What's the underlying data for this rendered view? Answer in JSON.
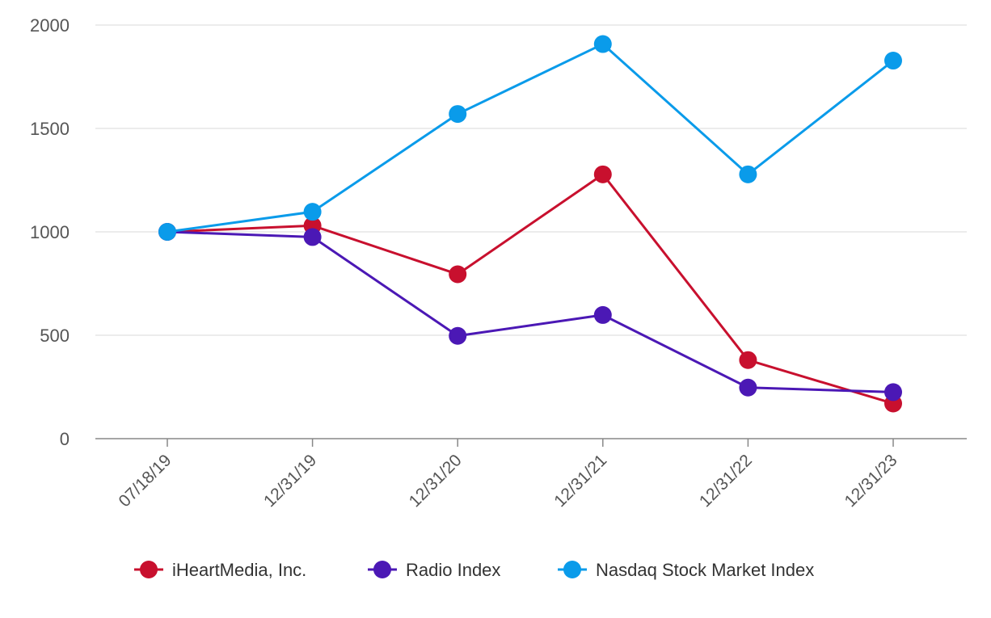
{
  "chart_data": {
    "type": "line",
    "title": "",
    "xlabel": "",
    "ylabel": "",
    "categories": [
      "07/18/19",
      "12/31/19",
      "12/31/20",
      "12/31/21",
      "12/31/22",
      "12/31/23"
    ],
    "ylim": [
      0,
      2000
    ],
    "yticks": [
      0,
      500,
      1000,
      1500,
      2000
    ],
    "grid": true,
    "legend_position": "bottom",
    "series": [
      {
        "name": "iHeartMedia, Inc.",
        "color": "#c8102e",
        "values": [
          1000,
          1030,
          795,
          1278,
          380,
          170
        ]
      },
      {
        "name": "Radio Index",
        "color": "#4b18b5",
        "values": [
          1000,
          975,
          497,
          598,
          247,
          225
        ]
      },
      {
        "name": "Nasdaq Stock Market Index",
        "color": "#0a9bea",
        "values": [
          1000,
          1097,
          1570,
          1908,
          1278,
          1828
        ]
      }
    ]
  }
}
